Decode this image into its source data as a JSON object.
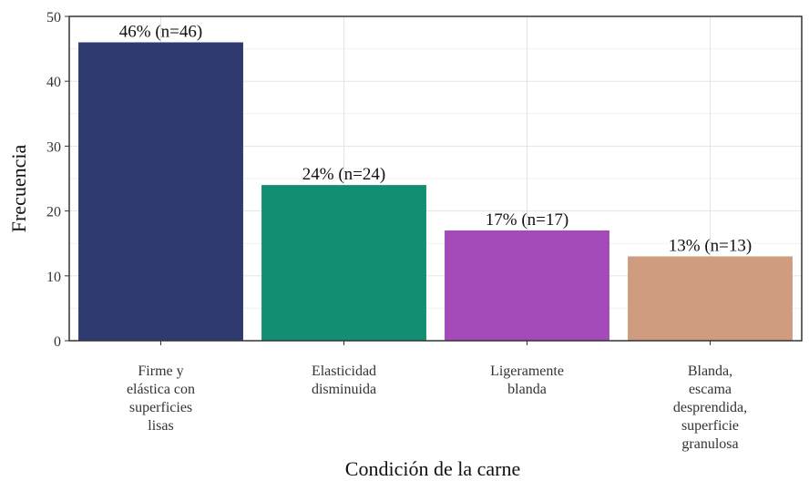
{
  "chart_data": {
    "type": "bar",
    "categories": [
      [
        "Firme y",
        "elástica con",
        "superficies",
        "lisas"
      ],
      [
        "Elasticidad",
        "disminuida"
      ],
      [
        "Ligeramente",
        "blanda"
      ],
      [
        "Blanda,",
        "escama",
        "desprendida,",
        "superficie",
        "granulosa"
      ]
    ],
    "values": [
      46,
      24,
      17,
      13
    ],
    "data_labels": [
      "46% (n=46)",
      "24% (n=24)",
      "17% (n=17)",
      "13% (n=13)"
    ],
    "colors": [
      "#2e3a70",
      "#128f73",
      "#a54bb9",
      "#cf9c80"
    ],
    "xlabel": "Condición de la carne",
    "ylabel": "Frecuencia",
    "ylim": [
      0,
      50
    ],
    "yticks": [
      0,
      10,
      20,
      30,
      40,
      50
    ],
    "grid": true,
    "legend": "none"
  }
}
